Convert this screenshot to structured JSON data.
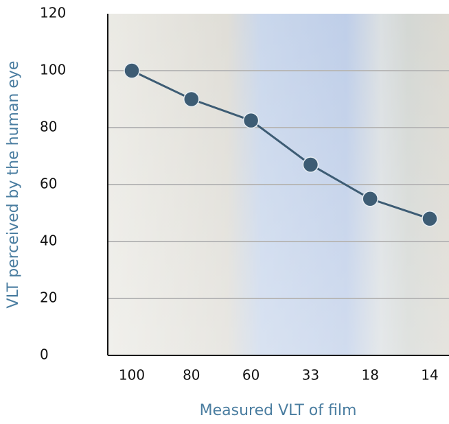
{
  "chart_data": {
    "type": "line",
    "x_label": "Measured VLT of film",
    "y_label": "VLT perceived by the human eye",
    "categories": [
      "100",
      "80",
      "60",
      "33",
      "18",
      "14"
    ],
    "values": [
      100,
      90,
      82.5,
      67,
      55,
      48
    ],
    "color": "#3d5c74",
    "ylim": [
      0,
      120
    ],
    "yticks": [
      0,
      20,
      40,
      60,
      80,
      100,
      120
    ],
    "grid": true
  }
}
